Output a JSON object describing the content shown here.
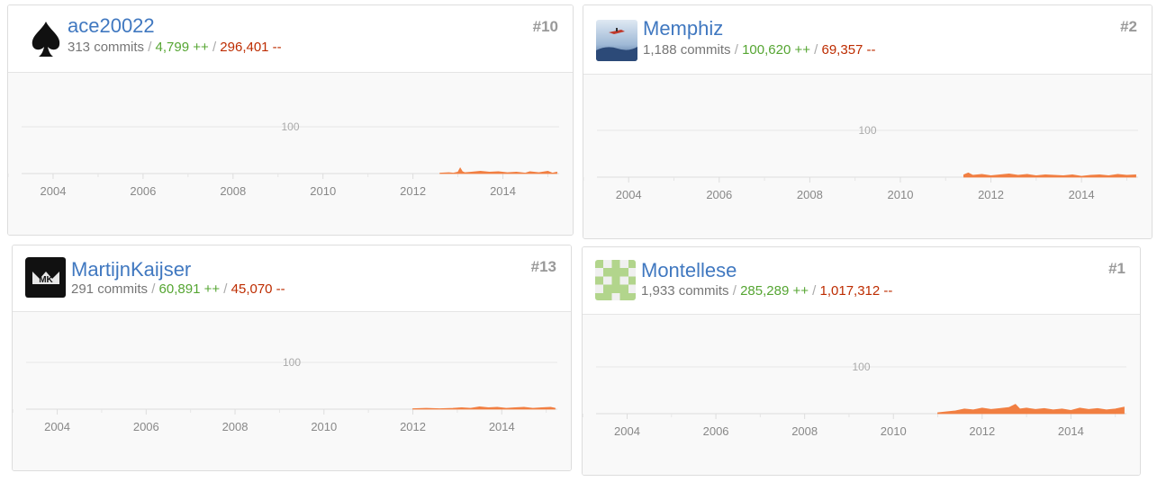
{
  "contributors": [
    {
      "username": "ace20022",
      "rank": "#10",
      "commits": "313 commits",
      "additions": "4,799 ++",
      "deletions": "296,401 --",
      "avatar": "spade-icon",
      "chart_data": {
        "type": "area",
        "y_gridline": "100",
        "x_ticks": [
          "2004",
          "2006",
          "2008",
          "2010",
          "2012",
          "2014"
        ],
        "x": [
          2012.6,
          2012.8,
          2012.9,
          2013.0,
          2013.05,
          2013.1,
          2013.15,
          2013.3,
          2013.5,
          2013.7,
          2013.9,
          2014.1,
          2014.3,
          2014.5,
          2014.6,
          2014.8,
          2015.0,
          2015.1,
          2015.2
        ],
        "values": [
          1,
          2,
          1,
          3,
          12,
          4,
          2,
          3,
          5,
          3,
          4,
          2,
          3,
          1,
          4,
          2,
          5,
          1,
          3
        ],
        "color": "#f17f42"
      }
    },
    {
      "username": "Memphiz",
      "rank": "#2",
      "commits": "1,188 commits",
      "additions": "100,620 ++",
      "deletions": "69,357 --",
      "avatar": "photo-avatar-icon",
      "chart_data": {
        "type": "area",
        "y_gridline": "100",
        "x_ticks": [
          "2004",
          "2006",
          "2008",
          "2010",
          "2012",
          "2014"
        ],
        "x": [
          2011.4,
          2011.5,
          2011.6,
          2011.8,
          2012.0,
          2012.2,
          2012.4,
          2012.6,
          2012.8,
          2013.0,
          2013.2,
          2013.4,
          2013.6,
          2013.8,
          2014.0,
          2014.2,
          2014.4,
          2014.6,
          2014.8,
          2015.0,
          2015.2
        ],
        "values": [
          5,
          9,
          4,
          6,
          3,
          5,
          7,
          4,
          6,
          3,
          5,
          4,
          3,
          5,
          2,
          4,
          5,
          3,
          6,
          4,
          5
        ],
        "color": "#f17f42"
      }
    },
    {
      "username": "MartijnKaijser",
      "rank": "#13",
      "commits": "291 commits",
      "additions": "60,891 ++",
      "deletions": "45,070 --",
      "avatar": "mk-logo-icon",
      "chart_data": {
        "type": "area",
        "y_gridline": "100",
        "x_ticks": [
          "2004",
          "2006",
          "2008",
          "2010",
          "2012",
          "2014"
        ],
        "x": [
          2012.0,
          2012.3,
          2012.6,
          2012.9,
          2013.1,
          2013.3,
          2013.5,
          2013.7,
          2013.9,
          2014.1,
          2014.3,
          2014.5,
          2014.7,
          2014.9,
          2015.1,
          2015.2
        ],
        "values": [
          1,
          2,
          1,
          2,
          3,
          2,
          5,
          3,
          4,
          2,
          3,
          4,
          2,
          3,
          4,
          2
        ],
        "color": "#f17f42"
      }
    },
    {
      "username": "Montellese",
      "rank": "#1",
      "commits": "1,933 commits",
      "additions": "285,289 ++",
      "deletions": "1,017,312 --",
      "avatar": "identicon-icon",
      "chart_data": {
        "type": "area",
        "y_gridline": "100",
        "x_ticks": [
          "2004",
          "2006",
          "2008",
          "2010",
          "2012",
          "2014"
        ],
        "x": [
          2011.0,
          2011.2,
          2011.4,
          2011.6,
          2011.8,
          2012.0,
          2012.2,
          2012.4,
          2012.6,
          2012.75,
          2012.85,
          2013.0,
          2013.2,
          2013.4,
          2013.6,
          2013.8,
          2014.0,
          2014.2,
          2014.4,
          2014.6,
          2014.8,
          2015.0,
          2015.2
        ],
        "values": [
          2,
          4,
          6,
          10,
          8,
          12,
          9,
          11,
          13,
          20,
          10,
          12,
          9,
          11,
          8,
          10,
          7,
          12,
          9,
          11,
          8,
          10,
          14
        ],
        "color": "#f17f42"
      }
    }
  ]
}
